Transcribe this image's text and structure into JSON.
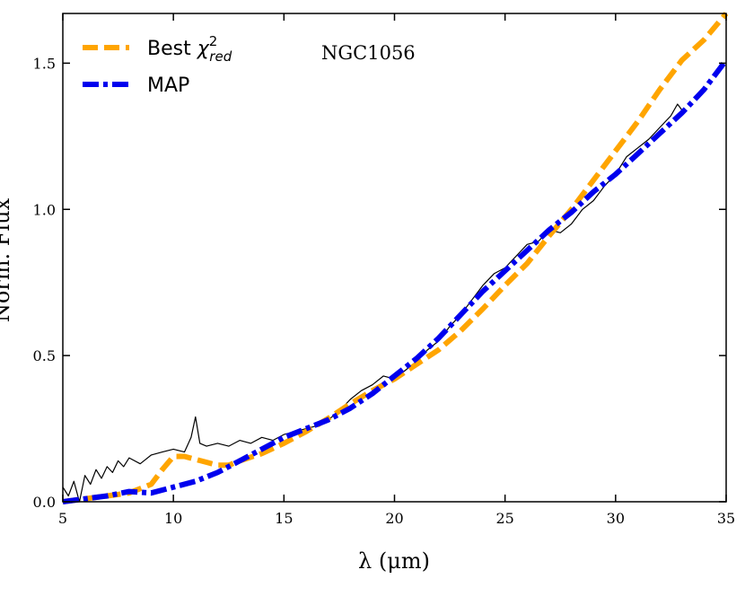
{
  "chart_data": {
    "type": "line",
    "xlabel": "λ (μm)",
    "ylabel": "Norm. Flux",
    "xlim": [
      5,
      35
    ],
    "ylim": [
      0,
      1.67
    ],
    "xticks": [
      5,
      10,
      15,
      20,
      25,
      30,
      35
    ],
    "xtick_labels": [
      "5",
      "10",
      "15",
      "20",
      "25",
      "30",
      "35"
    ],
    "yticks": [
      0.0,
      0.5,
      1.0,
      1.5
    ],
    "ytick_labels": [
      "0.0",
      "0.5",
      "1.0",
      "1.5"
    ],
    "annotation": "NGC1056",
    "legend_position": "top-left",
    "grid": false,
    "series": [
      {
        "name": "Best χ²red",
        "legend_main": "Best ",
        "legend_symbol": "χ",
        "legend_sup": "2",
        "legend_sub": "red",
        "color": "#ffa500",
        "style": "dashed",
        "x": [
          5,
          6,
          7,
          8,
          9,
          9.5,
          10,
          10.5,
          11,
          11.5,
          12,
          12.5,
          13,
          14,
          15,
          16,
          17,
          18,
          19,
          20,
          21,
          22,
          23,
          24,
          25,
          26,
          27,
          28,
          29,
          30,
          31,
          32,
          33,
          34,
          35
        ],
        "y": [
          0.0,
          0.01,
          0.02,
          0.03,
          0.06,
          0.11,
          0.155,
          0.155,
          0.145,
          0.135,
          0.125,
          0.125,
          0.14,
          0.165,
          0.2,
          0.24,
          0.285,
          0.335,
          0.38,
          0.42,
          0.47,
          0.52,
          0.585,
          0.66,
          0.74,
          0.815,
          0.91,
          1.0,
          1.1,
          1.2,
          1.3,
          1.41,
          1.51,
          1.58,
          1.67
        ]
      },
      {
        "name": "MAP",
        "legend_main": "MAP",
        "color": "#0000ee",
        "style": "dashdot",
        "x": [
          5,
          6,
          7,
          8,
          9,
          10,
          11,
          12,
          13,
          14,
          15,
          16,
          17,
          18,
          19,
          20,
          21,
          22,
          23,
          24,
          25,
          26,
          27,
          28,
          29,
          30,
          31,
          32,
          33,
          34,
          35
        ],
        "y": [
          0.0,
          0.01,
          0.02,
          0.035,
          0.03,
          0.05,
          0.07,
          0.1,
          0.14,
          0.18,
          0.22,
          0.25,
          0.28,
          0.32,
          0.37,
          0.43,
          0.49,
          0.56,
          0.64,
          0.72,
          0.79,
          0.86,
          0.93,
          0.99,
          1.06,
          1.12,
          1.19,
          1.26,
          1.33,
          1.41,
          1.51
        ]
      },
      {
        "name": "",
        "color": "#000000",
        "style": "solid",
        "x": [
          5.0,
          5.25,
          5.5,
          5.75,
          6.0,
          6.25,
          6.5,
          6.75,
          7.0,
          7.25,
          7.5,
          7.75,
          8.0,
          8.5,
          9.0,
          9.5,
          10.0,
          10.5,
          10.8,
          11.0,
          11.2,
          11.5,
          12.0,
          12.5,
          13.0,
          13.5,
          14.0,
          14.5,
          15.0,
          15.5,
          16.0,
          16.5,
          17.0,
          17.5,
          18.0,
          18.5,
          19.0,
          19.5,
          20.0,
          20.5,
          21.0,
          21.5,
          22.0,
          22.5,
          23.0,
          23.5,
          24.0,
          24.5,
          25.0,
          25.5,
          26.0,
          26.5,
          27.0,
          27.5,
          28.0,
          28.5,
          29.0,
          29.5,
          30.0,
          30.5,
          31.0,
          31.5,
          32.0,
          32.5,
          32.8,
          33.0
        ],
        "y": [
          0.05,
          0.02,
          0.07,
          0.0,
          0.09,
          0.06,
          0.11,
          0.08,
          0.12,
          0.1,
          0.14,
          0.12,
          0.15,
          0.13,
          0.16,
          0.17,
          0.18,
          0.17,
          0.22,
          0.29,
          0.2,
          0.19,
          0.2,
          0.19,
          0.21,
          0.2,
          0.22,
          0.21,
          0.23,
          0.24,
          0.25,
          0.26,
          0.28,
          0.31,
          0.35,
          0.38,
          0.4,
          0.43,
          0.42,
          0.45,
          0.48,
          0.52,
          0.55,
          0.6,
          0.64,
          0.69,
          0.74,
          0.78,
          0.8,
          0.84,
          0.88,
          0.89,
          0.93,
          0.92,
          0.95,
          1.0,
          1.03,
          1.08,
          1.12,
          1.18,
          1.21,
          1.24,
          1.28,
          1.32,
          1.36,
          1.34
        ]
      }
    ]
  }
}
